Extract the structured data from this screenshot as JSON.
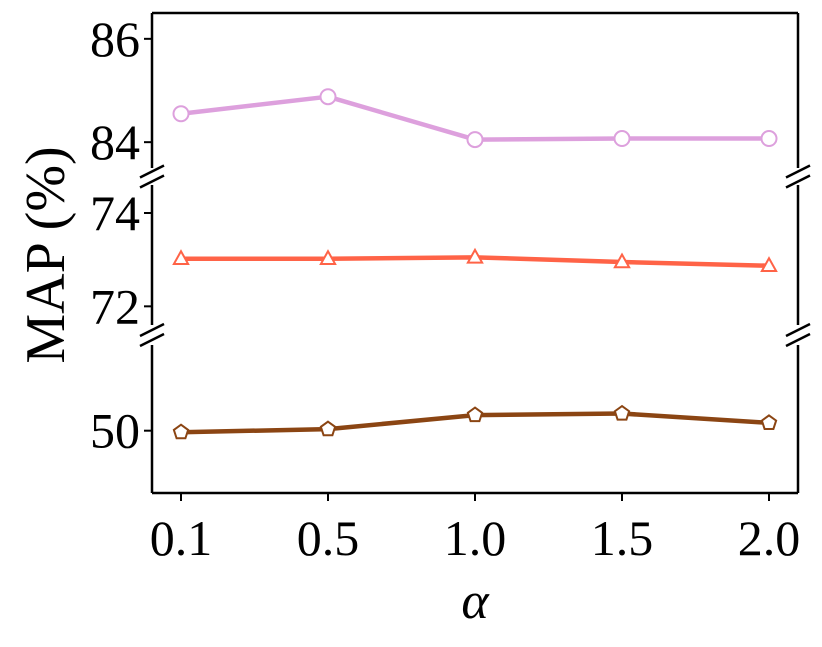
{
  "chart_data": {
    "type": "line",
    "title": "",
    "xlabel": "α",
    "ylabel": "MAP (%)",
    "x": [
      "0.1",
      "0.5",
      "1.0",
      "1.5",
      "2.0"
    ],
    "grid": false,
    "broken_y_axis": true,
    "panels": [
      {
        "ylim": [
          83.5,
          86.5
        ],
        "yticks": [
          84,
          86
        ],
        "series": [
          {
            "marker": "circle",
            "color": "#DDA0DD",
            "values": [
              84.55,
              84.88,
              84.05,
              84.07,
              84.07
            ]
          }
        ]
      },
      {
        "ylim": [
          71.6,
          74.6
        ],
        "yticks": [
          72,
          74
        ],
        "series": [
          {
            "marker": "triangle",
            "color": "#FF6347",
            "values": [
              73.02,
              73.02,
              73.05,
              72.95,
              72.87
            ]
          }
        ]
      },
      {
        "ylim": [
          46.0,
          55.5
        ],
        "yticks": [
          50
        ],
        "series": [
          {
            "marker": "pentagon",
            "color": "#8B4513",
            "values": [
              49.9,
              50.1,
              51.0,
              51.1,
              50.5
            ]
          }
        ]
      }
    ]
  }
}
